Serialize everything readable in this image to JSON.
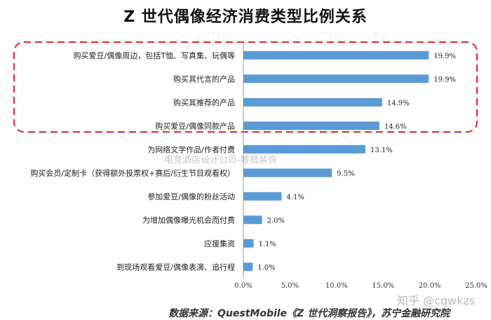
{
  "chart_data": {
    "type": "bar",
    "orientation": "horizontal",
    "title": "Z 世代偶像经济消费类型比例关系",
    "categories": [
      "购买爱豆/偶像周边，包括T恤、写真集、玩偶等",
      "购买其代言的产品",
      "购买其推荐的产品",
      "购买爱豆/偶像同款产品",
      "为网络文学作品/作者付费",
      "购买会员/定制卡（获得额外投票权+赛后/衍生节目观看权）",
      "参加爱豆/偶像的粉丝活动",
      "为增加偶像曝光机会而付费",
      "应援集资",
      "到现场观看爱豆/偶像表演、追行程"
    ],
    "values": [
      19.9,
      19.9,
      14.9,
      14.6,
      13.1,
      9.5,
      4.1,
      2.0,
      1.1,
      1.0
    ],
    "value_labels": [
      "19.9%",
      "19.9%",
      "14.9%",
      "14.6%",
      "13.1%",
      "9.5%",
      "4.1%",
      "2.0%",
      "1.1%",
      "1.0%"
    ],
    "xlim": [
      0,
      25
    ],
    "ticks": [
      0,
      5,
      10,
      15,
      20,
      25
    ],
    "tick_labels": [
      "0.0%",
      "5.0%",
      "10.0%",
      "15.0%",
      "20.0%",
      "25.0%"
    ],
    "grid": false,
    "highlighted_categories": [
      0,
      1,
      2,
      3
    ],
    "colors": {
      "bar": "#5b9bd5",
      "highlight_box": "#e0242b"
    }
  },
  "watermark": "电竞酒店设计公司-唯猎装饰",
  "zhihu_mark": "知乎 @cqwkzs",
  "source": "数据来源：QuestMobile《Z 世代洞察报告》，苏宁金融研究院"
}
